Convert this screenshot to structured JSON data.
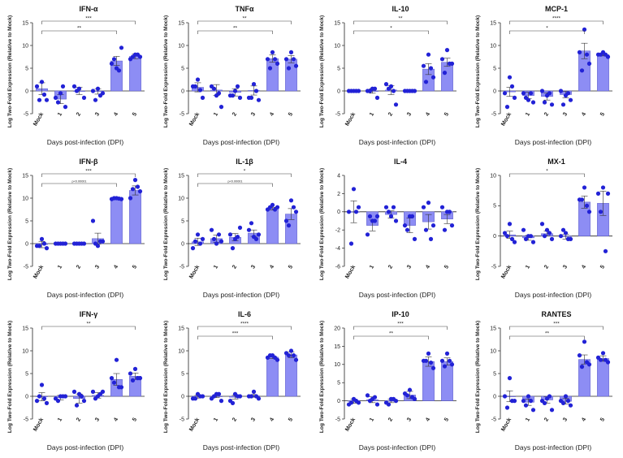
{
  "figure": {
    "xlabel": "Days post-infection (DPI)",
    "ylabel": "Log Two-Fold Expression (Relative to Mock)"
  },
  "chart_data": [
    {
      "type": "bar",
      "title": "IFN-α",
      "categories": [
        "Mock",
        "1",
        "2",
        "3",
        "4",
        "5"
      ],
      "yticks": [
        -5,
        0,
        5,
        10,
        15
      ],
      "ylim": [
        -5,
        15
      ],
      "values": [
        0.5,
        -1.8,
        0.0,
        -0.1,
        6.6,
        7.6
      ],
      "errors": [
        1.3,
        1.0,
        0.8,
        0.6,
        1.0,
        0.5
      ],
      "points": [
        [
          2,
          1,
          -2,
          -2,
          -0.8
        ],
        [
          -0.5,
          -1.5,
          -3.5,
          -2.5,
          1
        ],
        [
          0.5,
          1,
          -1.5,
          0
        ],
        [
          0.5,
          0,
          -0.5,
          -2,
          -1
        ],
        [
          5,
          6,
          9.5,
          7,
          4.5
        ],
        [
          8,
          7,
          7.5,
          7.5,
          8
        ]
      ],
      "sig": [
        {
          "from": 0,
          "to": 5,
          "label": "***"
        },
        {
          "from": 0,
          "to": 4,
          "label": "**"
        }
      ]
    },
    {
      "type": "bar",
      "title": "TNFα",
      "categories": [
        "Mock",
        "1",
        "2",
        "3",
        "4",
        "5"
      ],
      "yticks": [
        -5,
        0,
        5,
        10,
        15
      ],
      "ylim": [
        -5,
        15
      ],
      "values": [
        0.8,
        0.2,
        -0.3,
        0.1,
        7.1,
        7.0
      ],
      "errors": [
        1.0,
        1.2,
        0.8,
        1.0,
        0.8,
        0.8
      ],
      "points": [
        [
          2.5,
          1,
          -1.5,
          1,
          0.2
        ],
        [
          -1,
          1,
          -3.5,
          0.5,
          -0.5
        ],
        [
          0,
          -1,
          -1.5,
          -1,
          1
        ],
        [
          1.5,
          -1.5,
          -2,
          -1.5,
          0
        ],
        [
          8.5,
          7,
          6,
          5,
          7
        ],
        [
          8.5,
          7,
          5.5,
          5,
          7
        ]
      ],
      "sig": [
        {
          "from": 0,
          "to": 5,
          "label": "**"
        },
        {
          "from": 0,
          "to": 4,
          "label": "**"
        }
      ]
    },
    {
      "type": "bar",
      "title": "IL-10",
      "categories": [
        "Mock",
        "1",
        "2",
        "3",
        "4",
        "5"
      ],
      "yticks": [
        -5,
        0,
        5,
        10,
        15
      ],
      "ylim": [
        -5,
        15
      ],
      "values": [
        0.0,
        0.0,
        0.2,
        0.0,
        4.8,
        6.3
      ],
      "errors": [
        0.1,
        0.5,
        1.0,
        0.1,
        1.2,
        0.9
      ],
      "points": [
        [
          0,
          0,
          0,
          0,
          0
        ],
        [
          0.5,
          0,
          -1.5,
          0,
          0.5
        ],
        [
          1,
          1.5,
          -3,
          0.5,
          0
        ],
        [
          0,
          0,
          0,
          0,
          0
        ],
        [
          8,
          5.5,
          3,
          2,
          5
        ],
        [
          9,
          7,
          6,
          4,
          6
        ]
      ],
      "sig": [
        {
          "from": 0,
          "to": 5,
          "label": "**"
        },
        {
          "from": 0,
          "to": 4,
          "label": "*"
        }
      ]
    },
    {
      "type": "bar",
      "title": "MCP-1",
      "categories": [
        "Mock",
        "1",
        "2",
        "3",
        "4",
        "5"
      ],
      "yticks": [
        -5,
        0,
        5,
        10,
        15
      ],
      "ylim": [
        -5,
        15
      ],
      "values": [
        -0.2,
        -1.0,
        -1.2,
        -0.8,
        8.8,
        8.0
      ],
      "errors": [
        1.0,
        0.7,
        0.8,
        0.7,
        1.7,
        0.3
      ],
      "points": [
        [
          3,
          -0.5,
          -1.5,
          -3.5,
          1
        ],
        [
          -2,
          -0.5,
          -2.5,
          -1.5,
          -0.5
        ],
        [
          -1,
          0,
          -3,
          -2.5,
          -0.5
        ],
        [
          -1,
          0,
          -2,
          -3,
          -0.5
        ],
        [
          13.5,
          8.5,
          6,
          4.5,
          8
        ],
        [
          8.5,
          8,
          7.5,
          8,
          8
        ]
      ],
      "sig": [
        {
          "from": 0,
          "to": 5,
          "label": "****"
        },
        {
          "from": 0,
          "to": 4,
          "label": "*"
        }
      ]
    },
    {
      "type": "bar",
      "title": "IFN-β",
      "categories": [
        "Mock",
        "1",
        "2",
        "3",
        "4",
        "5"
      ],
      "yticks": [
        -5,
        0,
        5,
        10,
        15
      ],
      "ylim": [
        -5,
        15
      ],
      "values": [
        -0.2,
        0.0,
        0.0,
        1.1,
        9.9,
        11.7
      ],
      "errors": [
        0.7,
        0.05,
        0.05,
        1.2,
        0.1,
        1.0
      ],
      "points": [
        [
          1,
          -0.5,
          -1,
          -0.5,
          0
        ],
        [
          0,
          0,
          0,
          0,
          0
        ],
        [
          0,
          0,
          0,
          0,
          0
        ],
        [
          -0.5,
          5,
          0.5,
          0,
          0.5
        ],
        [
          10,
          9.8,
          9.8,
          10,
          9.9
        ],
        [
          14,
          10,
          11.5,
          12,
          12.5
        ]
      ],
      "sig": [
        {
          "from": 0,
          "to": 5,
          "label": "***"
        },
        {
          "from": 0,
          "to": 4,
          "label": "p<0.00001"
        }
      ]
    },
    {
      "type": "bar",
      "title": "IL-1β",
      "categories": [
        "Mock",
        "1",
        "2",
        "3",
        "4",
        "5"
      ],
      "yticks": [
        -5,
        0,
        5,
        10,
        15
      ],
      "ylim": [
        -5,
        15
      ],
      "values": [
        0.4,
        1.1,
        1.4,
        2.3,
        7.7,
        6.5
      ],
      "errors": [
        0.8,
        0.8,
        0.8,
        0.7,
        0.3,
        1.2
      ],
      "points": [
        [
          2,
          -1,
          1,
          0.5,
          0
        ],
        [
          0,
          3,
          0.5,
          1,
          2
        ],
        [
          1,
          2,
          3.5,
          -1,
          1.5
        ],
        [
          1.5,
          3,
          2,
          4.5,
          1
        ],
        [
          8.5,
          7.5,
          8,
          8,
          7.5
        ],
        [
          9.5,
          5,
          7,
          4,
          8
        ]
      ],
      "sig": [
        {
          "from": 0,
          "to": 5,
          "label": "*"
        },
        {
          "from": 0,
          "to": 4,
          "label": "p<0.00001"
        }
      ]
    },
    {
      "type": "bar",
      "title": "IL-4",
      "categories": [
        "Mock",
        "1",
        "2",
        "3",
        "4",
        "5"
      ],
      "yticks": [
        -6,
        -4,
        -2,
        0,
        2,
        4
      ],
      "ylim": [
        -6,
        4
      ],
      "values": [
        0.0,
        -1.5,
        -0.3,
        -1.5,
        -1.1,
        -0.8
      ],
      "errors": [
        1.2,
        0.6,
        0.4,
        0.8,
        0.8,
        0.5
      ],
      "points": [
        [
          2.5,
          0,
          0.5,
          -3.5,
          0
        ],
        [
          -1,
          -2.5,
          -0.5,
          -0.5,
          -1
        ],
        [
          -0.5,
          0.5,
          -1,
          0,
          0.5
        ],
        [
          -0.5,
          -1.5,
          -3,
          -2,
          -0.5
        ],
        [
          1,
          0.5,
          -1.5,
          -2,
          -3
        ],
        [
          0,
          0.5,
          -1.5,
          -2,
          0
        ]
      ],
      "sig": []
    },
    {
      "type": "bar",
      "title": "MX-1",
      "categories": [
        "Mock",
        "1",
        "2",
        "3",
        "4",
        "5"
      ],
      "yticks": [
        -5,
        0,
        5,
        10
      ],
      "ylim": [
        -5,
        10
      ],
      "values": [
        0.2,
        -0.3,
        0.4,
        -0.1,
        5.6,
        5.4
      ],
      "errors": [
        0.6,
        0.4,
        0.4,
        0.4,
        1.0,
        2.0
      ],
      "points": [
        [
          2,
          0.5,
          -1,
          0,
          -0.5
        ],
        [
          0,
          1,
          -1,
          -0.5,
          0
        ],
        [
          1,
          2,
          -0.5,
          0,
          0.5
        ],
        [
          0.5,
          0,
          -0.5,
          1,
          -0.5
        ],
        [
          8,
          6,
          4,
          6,
          5
        ],
        [
          8,
          7,
          7,
          4,
          -2.5
        ]
      ],
      "sig": [
        {
          "from": 0,
          "to": 4,
          "label": "*"
        }
      ]
    },
    {
      "type": "bar",
      "title": "IFN-γ",
      "categories": [
        "Mock",
        "1",
        "2",
        "3",
        "4",
        "5"
      ],
      "yticks": [
        -5,
        0,
        5,
        10,
        15
      ],
      "ylim": [
        -5,
        15
      ],
      "values": [
        -0.1,
        -0.3,
        -0.5,
        0.2,
        3.7,
        4.4
      ],
      "errors": [
        0.9,
        0.5,
        1.0,
        0.6,
        1.3,
        0.7
      ],
      "points": [
        [
          2.5,
          -1,
          -1.5,
          0,
          -0.5
        ],
        [
          0,
          -0.5,
          0,
          -1,
          0
        ],
        [
          0.5,
          1,
          -1,
          -2,
          0
        ],
        [
          0,
          1,
          1,
          -0.5,
          0.5
        ],
        [
          8,
          4,
          2,
          3,
          2
        ],
        [
          6,
          5,
          4,
          3.5,
          4
        ]
      ],
      "sig": [
        {
          "from": 0,
          "to": 5,
          "label": "**"
        }
      ]
    },
    {
      "type": "bar",
      "title": "IL-6",
      "categories": [
        "Mock",
        "1",
        "2",
        "3",
        "4",
        "5"
      ],
      "yticks": [
        -5,
        0,
        5,
        10,
        15
      ],
      "ylim": [
        -5,
        15
      ],
      "values": [
        -0.1,
        0.0,
        -0.2,
        0.1,
        8.6,
        9.1
      ],
      "errors": [
        0.3,
        0.3,
        0.4,
        0.3,
        0.3,
        0.6
      ],
      "points": [
        [
          0.5,
          -0.5,
          0,
          -0.5,
          0
        ],
        [
          0.5,
          -0.5,
          -1,
          0,
          0.5
        ],
        [
          0.5,
          -1,
          0,
          -1.5,
          0
        ],
        [
          1,
          0,
          -0.5,
          0,
          0
        ],
        [
          9,
          8.5,
          8,
          9,
          8.5
        ],
        [
          10,
          9.5,
          8,
          9,
          9
        ]
      ],
      "sig": [
        {
          "from": 0,
          "to": 5,
          "label": "****"
        },
        {
          "from": 0,
          "to": 4,
          "label": "***"
        }
      ]
    },
    {
      "type": "bar",
      "title": "IP-10",
      "categories": [
        "Mock",
        "1",
        "2",
        "3",
        "4",
        "5"
      ],
      "yticks": [
        -5,
        0,
        5,
        10,
        15,
        20
      ],
      "ylim": [
        -5,
        20
      ],
      "values": [
        -0.1,
        0.3,
        0.0,
        1.6,
        10.8,
        10.8
      ],
      "errors": [
        0.6,
        0.8,
        0.5,
        1.0,
        1.3,
        1.0
      ],
      "points": [
        [
          0.5,
          -1,
          -0.5,
          -0.5,
          0
        ],
        [
          0.5,
          1.5,
          -1,
          0,
          1
        ],
        [
          0.5,
          -0.5,
          0,
          -1,
          0.5
        ],
        [
          3,
          2,
          0.5,
          1.5,
          1
        ],
        [
          13,
          11,
          9,
          11,
          10.5
        ],
        [
          13,
          11,
          10,
          9.5,
          11
        ]
      ],
      "sig": [
        {
          "from": 0,
          "to": 5,
          "label": "***"
        },
        {
          "from": 0,
          "to": 4,
          "label": "**"
        }
      ]
    },
    {
      "type": "bar",
      "title": "RANTES",
      "categories": [
        "Mock",
        "1",
        "2",
        "3",
        "4",
        "5"
      ],
      "yticks": [
        -5,
        0,
        5,
        10,
        15
      ],
      "ylim": [
        -5,
        15
      ],
      "values": [
        0.0,
        -1.3,
        -0.8,
        -1.1,
        8.1,
        8.3
      ],
      "errors": [
        1.2,
        0.7,
        0.7,
        0.6,
        1.0,
        0.6
      ],
      "points": [
        [
          4,
          0,
          -1,
          -2.5,
          -1
        ],
        [
          0,
          -1,
          -3,
          -2,
          -1
        ],
        [
          -0.5,
          -1,
          -3,
          -1.5,
          0
        ],
        [
          0,
          -1,
          -2,
          -1.5,
          -1
        ],
        [
          12,
          9,
          7,
          6.5,
          7.5
        ],
        [
          9.5,
          8.5,
          7.5,
          8,
          8
        ]
      ],
      "sig": [
        {
          "from": 0,
          "to": 5,
          "label": "***"
        },
        {
          "from": 0,
          "to": 4,
          "label": "**"
        }
      ]
    }
  ]
}
